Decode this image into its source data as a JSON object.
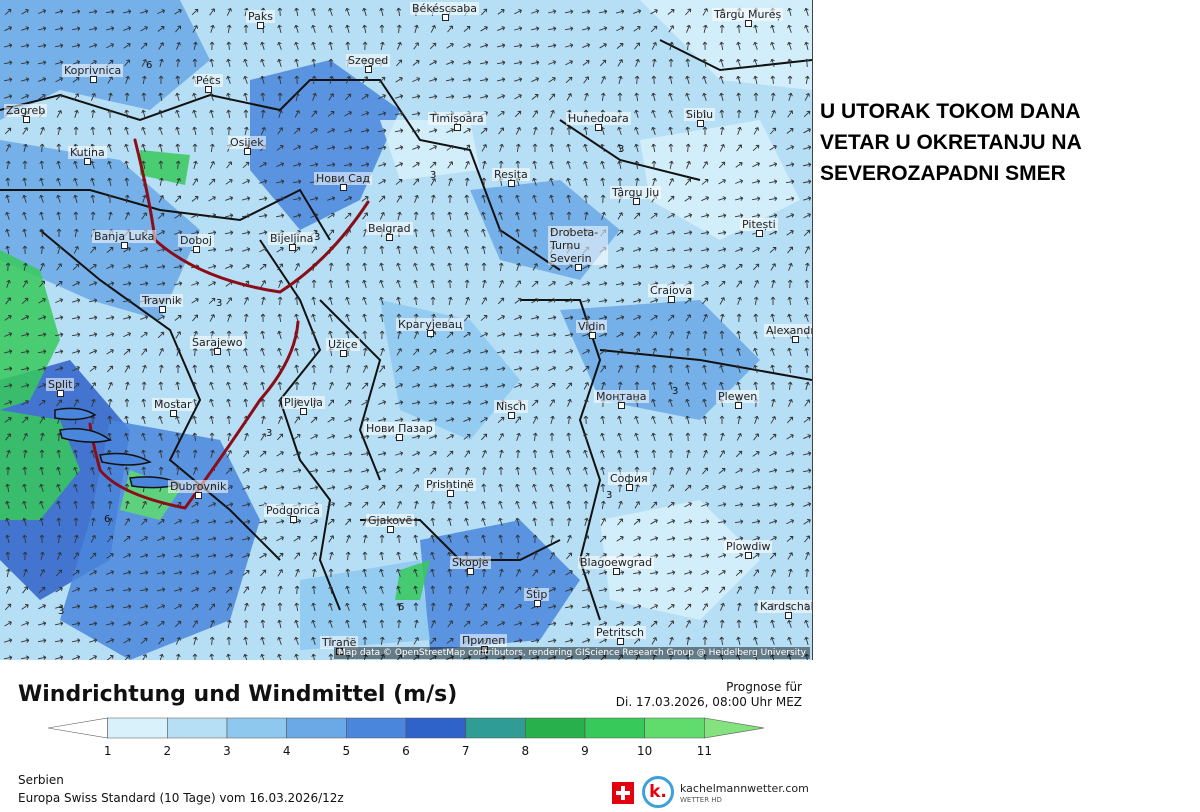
{
  "annotation": {
    "lines": [
      "U UTORAK TOKOM DANA",
      "VETAR U OKRETANJU NA",
      "SEVEROZAPADNI SMER"
    ]
  },
  "map": {
    "attribution": "Map data © OpenStreetMap contributors, rendering GIScience Research Group @ Heidelberg University",
    "cities": [
      {
        "name": "Paks"
      },
      {
        "name": "Békéscsaba"
      },
      {
        "name": "Târgu Mureș"
      },
      {
        "name": "Koprivnica"
      },
      {
        "name": "Pécs"
      },
      {
        "name": "Szeged"
      },
      {
        "name": "Zagreb"
      },
      {
        "name": "Osijek"
      },
      {
        "name": "Timișoara"
      },
      {
        "name": "Hunedoara"
      },
      {
        "name": "Sibiu"
      },
      {
        "name": "Kutina"
      },
      {
        "name": "Нови Сад"
      },
      {
        "name": "Reșița"
      },
      {
        "name": "Târgu Jiu"
      },
      {
        "name": "Banja Luka"
      },
      {
        "name": "Doboj"
      },
      {
        "name": "Bijeljina"
      },
      {
        "name": "Belgrad"
      },
      {
        "name": "Drobeta-Turnu Severin"
      },
      {
        "name": "Pitești"
      },
      {
        "name": "Travnik"
      },
      {
        "name": "Craiova"
      },
      {
        "name": "Крагујевац"
      },
      {
        "name": "Vidin"
      },
      {
        "name": "Sarajewo"
      },
      {
        "name": "Užice"
      },
      {
        "name": "Alexandria"
      },
      {
        "name": "Split"
      },
      {
        "name": "Mostar"
      },
      {
        "name": "Pljevlja"
      },
      {
        "name": "Nisch"
      },
      {
        "name": "Монтана"
      },
      {
        "name": "Plewen"
      },
      {
        "name": "Нови Пазар"
      },
      {
        "name": "Dubrovnik"
      },
      {
        "name": "Prishtinë"
      },
      {
        "name": "София"
      },
      {
        "name": "Podgorica"
      },
      {
        "name": "Gjakovë"
      },
      {
        "name": "Plowdiw"
      },
      {
        "name": "Skopje"
      },
      {
        "name": "Blagoewgrad"
      },
      {
        "name": "Štip"
      },
      {
        "name": "Tiranë"
      },
      {
        "name": "Прилеп"
      },
      {
        "name": "Petritsch"
      },
      {
        "name": "Kardschali"
      }
    ],
    "contour_labels": [
      "6",
      "3",
      "3",
      "3",
      "3",
      "3",
      "3",
      "3",
      "6",
      "6",
      "3"
    ]
  },
  "legend": {
    "title": "Windrichtung und Windmittel (m/s)",
    "forecast_label": "Prognose für",
    "forecast_time": "Di. 17.03.2026, 08:00 Uhr MEZ",
    "ticks": [
      "1",
      "2",
      "3",
      "4",
      "5",
      "6",
      "7",
      "8",
      "9",
      "10",
      "11"
    ],
    "colors": [
      "#ffffff",
      "#d8f1fb",
      "#b6def4",
      "#8ec8ef",
      "#6aa8e6",
      "#4a87dc",
      "#2f63c9",
      "#2f9c95",
      "#28b04c",
      "#37c95a",
      "#5fdc6c",
      "#84e27f"
    ]
  },
  "footer": {
    "region": "Serbien",
    "model": "Europa Swiss Standard (10 Tage) vom  16.03.2026/12z"
  },
  "logo": {
    "name": "kachelmannwetter.com",
    "sub": "WETTER HD",
    "letter": "k."
  }
}
